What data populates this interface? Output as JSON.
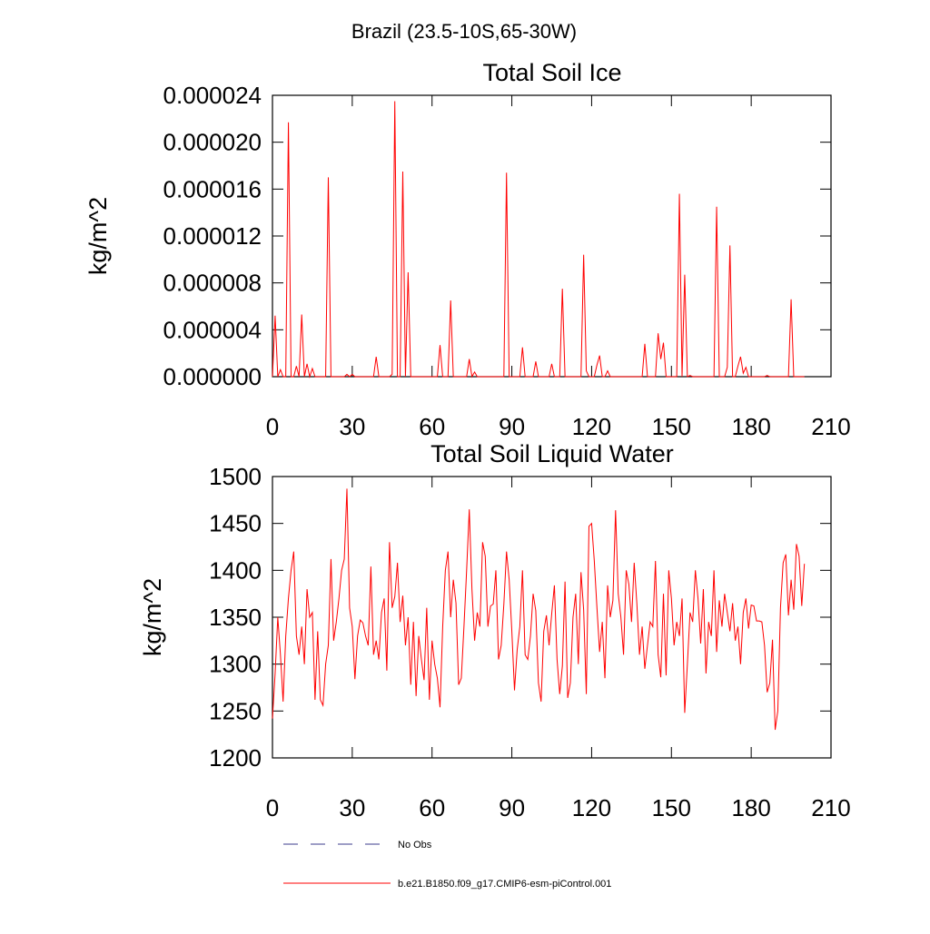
{
  "title": "Brazil (23.5-10S,65-30W)",
  "legend": [
    {
      "name": "No Obs",
      "color": "#3c3c8c",
      "dash": true
    },
    {
      "name": "b.e21.B1850.f09_g17.CMIP6-esm-piControl.001",
      "color": "#ff0000",
      "dash": false
    }
  ],
  "chart_data": [
    {
      "type": "line",
      "title": "Total Soil Ice",
      "ylabel": "kg/m^2",
      "x": [
        0,
        1,
        2,
        3,
        4,
        5,
        6,
        7,
        8,
        9,
        10,
        11,
        12,
        13,
        14,
        15,
        16,
        17,
        18,
        19,
        20,
        21,
        22,
        23,
        24,
        25,
        26,
        27,
        28,
        29,
        30,
        31,
        32,
        33,
        34,
        35,
        36,
        37,
        38,
        39,
        40,
        41,
        42,
        43,
        44,
        45,
        46,
        47,
        48,
        49,
        50,
        51,
        52,
        53,
        54,
        55,
        56,
        57,
        58,
        59,
        60,
        61,
        62,
        63,
        64,
        65,
        66,
        67,
        68,
        69,
        70,
        71,
        72,
        73,
        74,
        75,
        76,
        77,
        78,
        79,
        80,
        81,
        82,
        83,
        84,
        85,
        86,
        87,
        88,
        89,
        90,
        91,
        92,
        93,
        94,
        95,
        96,
        97,
        98,
        99,
        100,
        101,
        102,
        103,
        104,
        105,
        106,
        107,
        108,
        109,
        110,
        111,
        112,
        113,
        114,
        115,
        116,
        117,
        118,
        119,
        120,
        121,
        122,
        123,
        124,
        125,
        126,
        127,
        128,
        129,
        130,
        131,
        132,
        133,
        134,
        135,
        136,
        137,
        138,
        139,
        140,
        141,
        142,
        143,
        144,
        145,
        146,
        147,
        148,
        149,
        150,
        151,
        152,
        153,
        154,
        155,
        156,
        157,
        158,
        159,
        160,
        161,
        162,
        163,
        164,
        165,
        166,
        167,
        168,
        169,
        170,
        171,
        172,
        173,
        174,
        175,
        176,
        177,
        178,
        179,
        180,
        181,
        182,
        183,
        184,
        185,
        186,
        187,
        188,
        189,
        190,
        191,
        192,
        193,
        194,
        195,
        196,
        197,
        198,
        199,
        200
      ],
      "series": [
        {
          "color": "#ff0000",
          "values": [
            0,
            5.2e-06,
            0,
            6e-07,
            0,
            0,
            2.17e-05,
            0,
            0,
            9e-07,
            0,
            5.3e-06,
            0,
            1.1e-06,
            0,
            7e-07,
            0,
            0,
            0,
            0,
            0,
            1.7e-05,
            0,
            0,
            0,
            0,
            0,
            0,
            2e-07,
            0,
            2e-07,
            0,
            0,
            0,
            0,
            0,
            0,
            0,
            0,
            1.7e-06,
            0,
            0,
            0,
            0,
            0,
            2e-07,
            2.35e-05,
            0,
            0,
            1.75e-05,
            0,
            8.9e-06,
            0,
            0,
            0,
            0,
            0,
            0,
            0,
            0,
            0,
            0,
            0,
            2.7e-06,
            0,
            0,
            0,
            6.5e-06,
            0,
            0,
            0,
            0,
            0,
            0,
            1.5e-06,
            0,
            4e-07,
            0,
            0,
            0,
            0,
            0,
            0,
            0,
            0,
            0,
            0,
            0,
            1.74e-05,
            0,
            0,
            0,
            0,
            0,
            2.5e-06,
            0,
            0,
            0,
            0,
            1.3e-06,
            0,
            0,
            0,
            0,
            0,
            1.1e-06,
            0,
            0,
            0,
            7.5e-06,
            0,
            0,
            0,
            0,
            0,
            0,
            0,
            1.04e-05,
            5e-07,
            0,
            0,
            0,
            1e-06,
            1.8e-06,
            0,
            0,
            5e-07,
            0,
            0,
            0,
            0,
            0,
            0,
            0,
            0,
            0,
            0,
            0,
            0,
            0,
            2.8e-06,
            0,
            0,
            0,
            0,
            3.7e-06,
            1.5e-06,
            2.9e-06,
            0,
            0,
            0,
            0,
            0,
            1.56e-05,
            0,
            8.7e-06,
            0,
            1e-07,
            0,
            0,
            0,
            0,
            0,
            0,
            0,
            0,
            0,
            1.45e-05,
            0,
            0,
            0,
            8e-07,
            1.12e-05,
            0,
            0,
            9e-07,
            1.7e-06,
            3e-07,
            8e-07,
            0,
            0,
            0,
            0,
            0,
            0,
            0,
            1e-07,
            0,
            0,
            0,
            0,
            0,
            0,
            0,
            0,
            6.6e-06,
            0,
            0,
            0,
            0,
            0
          ]
        }
      ],
      "xlim": [
        0,
        210
      ],
      "xticks": [
        0,
        30,
        60,
        90,
        120,
        150,
        180,
        210
      ],
      "ylim": [
        0,
        2.4e-05
      ],
      "yticks": [
        {
          "value": 0,
          "label": "0.000000"
        },
        {
          "value": 4e-06,
          "label": "0.000004"
        },
        {
          "value": 8e-06,
          "label": "0.000008"
        },
        {
          "value": 1.2e-05,
          "label": "0.000012"
        },
        {
          "value": 1.6e-05,
          "label": "0.000016"
        },
        {
          "value": 2e-05,
          "label": "0.000020"
        },
        {
          "value": 2.4e-05,
          "label": "0.000024"
        }
      ]
    },
    {
      "type": "line",
      "title": "Total Soil Liquid Water",
      "ylabel": "kg/m^2",
      "x": [
        0,
        1,
        2,
        3,
        4,
        5,
        6,
        7,
        8,
        9,
        10,
        11,
        12,
        13,
        14,
        15,
        16,
        17,
        18,
        19,
        20,
        21,
        22,
        23,
        24,
        25,
        26,
        27,
        28,
        29,
        30,
        31,
        32,
        33,
        34,
        35,
        36,
        37,
        38,
        39,
        40,
        41,
        42,
        43,
        44,
        45,
        46,
        47,
        48,
        49,
        50,
        51,
        52,
        53,
        54,
        55,
        56,
        57,
        58,
        59,
        60,
        61,
        62,
        63,
        64,
        65,
        66,
        67,
        68,
        69,
        70,
        71,
        72,
        73,
        74,
        75,
        76,
        77,
        78,
        79,
        80,
        81,
        82,
        83,
        84,
        85,
        86,
        87,
        88,
        89,
        90,
        91,
        92,
        93,
        94,
        95,
        96,
        97,
        98,
        99,
        100,
        101,
        102,
        103,
        104,
        105,
        106,
        107,
        108,
        109,
        110,
        111,
        112,
        113,
        114,
        115,
        116,
        117,
        118,
        119,
        120,
        121,
        122,
        123,
        124,
        125,
        126,
        127,
        128,
        129,
        130,
        131,
        132,
        133,
        134,
        135,
        136,
        137,
        138,
        139,
        140,
        141,
        142,
        143,
        144,
        145,
        146,
        147,
        148,
        149,
        150,
        151,
        152,
        153,
        154,
        155,
        156,
        157,
        158,
        159,
        160,
        161,
        162,
        163,
        164,
        165,
        166,
        167,
        168,
        169,
        170,
        171,
        172,
        173,
        174,
        175,
        176,
        177,
        178,
        179,
        180,
        181,
        182,
        183,
        184,
        185,
        186,
        187,
        188,
        189,
        190,
        191,
        192,
        193,
        194,
        195,
        196,
        197,
        198,
        199,
        200
      ],
      "series": [
        {
          "color": "#ff0000",
          "values": [
            1242,
            1290,
            1350,
            1310,
            1260,
            1330,
            1370,
            1400,
            1420,
            1330,
            1310,
            1340,
            1300,
            1380,
            1350,
            1355,
            1262,
            1335,
            1262,
            1256,
            1300,
            1320,
            1412,
            1325,
            1345,
            1370,
            1400,
            1412,
            1487,
            1360,
            1340,
            1284,
            1330,
            1347,
            1344,
            1330,
            1320,
            1404,
            1310,
            1325,
            1305,
            1355,
            1370,
            1293,
            1430,
            1360,
            1372,
            1408,
            1345,
            1373,
            1320,
            1350,
            1278,
            1345,
            1266,
            1330,
            1305,
            1283,
            1360,
            1262,
            1325,
            1300,
            1285,
            1254,
            1340,
            1400,
            1420,
            1350,
            1390,
            1365,
            1278,
            1285,
            1340,
            1400,
            1465,
            1380,
            1325,
            1355,
            1340,
            1430,
            1415,
            1340,
            1362,
            1364,
            1400,
            1305,
            1320,
            1364,
            1420,
            1390,
            1335,
            1272,
            1315,
            1340,
            1400,
            1310,
            1305,
            1330,
            1375,
            1357,
            1280,
            1260,
            1335,
            1352,
            1320,
            1354,
            1384,
            1305,
            1268,
            1298,
            1388,
            1264,
            1280,
            1350,
            1375,
            1300,
            1398,
            1358,
            1268,
            1447,
            1450,
            1410,
            1360,
            1313,
            1345,
            1285,
            1384,
            1350,
            1368,
            1464,
            1375,
            1350,
            1310,
            1400,
            1385,
            1345,
            1408,
            1365,
            1310,
            1340,
            1295,
            1320,
            1345,
            1340,
            1410,
            1310,
            1286,
            1375,
            1288,
            1400,
            1370,
            1320,
            1345,
            1330,
            1370,
            1248,
            1300,
            1355,
            1345,
            1400,
            1370,
            1322,
            1380,
            1290,
            1345,
            1330,
            1400,
            1313,
            1368,
            1340,
            1375,
            1355,
            1335,
            1365,
            1325,
            1340,
            1300,
            1355,
            1370,
            1338,
            1363,
            1362,
            1346,
            1346,
            1345,
            1320,
            1270,
            1280,
            1326,
            1230,
            1250,
            1360,
            1408,
            1417,
            1352,
            1390,
            1358,
            1428,
            1415,
            1362,
            1407
          ]
        }
      ],
      "xlim": [
        0,
        210
      ],
      "xticks": [
        0,
        30,
        60,
        90,
        120,
        150,
        180,
        210
      ],
      "ylim": [
        1200,
        1500
      ],
      "yticks": [
        1200,
        1250,
        1300,
        1350,
        1400,
        1450,
        1500
      ]
    }
  ]
}
